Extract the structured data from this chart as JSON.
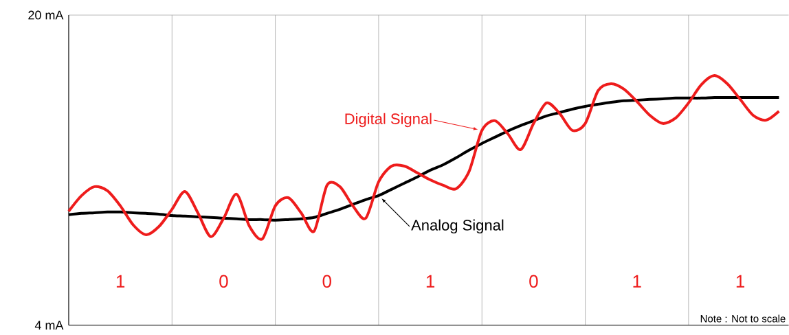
{
  "chart_data": {
    "type": "line",
    "categories": [
      null,
      null,
      null,
      null,
      null,
      null,
      null,
      null,
      null,
      null,
      null,
      null,
      null,
      null,
      null,
      null,
      null,
      null,
      null,
      null,
      null,
      null,
      null,
      null,
      null,
      null,
      null,
      null,
      null,
      null,
      null,
      null,
      null,
      null,
      null,
      null,
      null,
      null,
      null,
      null,
      null,
      null,
      null,
      null,
      null,
      null,
      null,
      null,
      null,
      null,
      null,
      null,
      null,
      null,
      null,
      null
    ],
    "ylim": [
      4,
      20
    ],
    "yticks": [
      {
        "value": 4,
        "label": "4 mA"
      },
      {
        "value": 20,
        "label": "20 mA"
      }
    ],
    "tick_labels": "y",
    "grid": true,
    "marker": "none",
    "line_style": "solid",
    "series": [
      {
        "name": "Analog Signal",
        "color": "#000000",
        "values": [
          9.7,
          9.77,
          9.8,
          9.84,
          9.84,
          9.8,
          9.77,
          9.73,
          9.66,
          9.63,
          9.59,
          9.56,
          9.52,
          9.49,
          9.45,
          9.45,
          9.42,
          9.45,
          9.49,
          9.56,
          9.77,
          9.98,
          10.23,
          10.48,
          10.69,
          11.01,
          11.33,
          11.65,
          12.0,
          12.28,
          12.64,
          13.03,
          13.38,
          13.7,
          14.02,
          14.3,
          14.55,
          14.8,
          14.97,
          15.15,
          15.29,
          15.4,
          15.5,
          15.58,
          15.61,
          15.65,
          15.68,
          15.72,
          15.72,
          15.72,
          15.75,
          15.75,
          15.75,
          15.75,
          15.75,
          15.75
        ]
      },
      {
        "name": "Digital Signal",
        "color": "#ee1c1c",
        "values": [
          9.88,
          10.69,
          11.15,
          10.94,
          10.16,
          9.17,
          8.67,
          9.1,
          9.98,
          10.9,
          9.8,
          8.57,
          9.52,
          10.76,
          9.1,
          8.46,
          10.16,
          10.58,
          9.8,
          8.85,
          11.22,
          11.15,
          10.16,
          9.52,
          11.4,
          12.21,
          12.21,
          11.86,
          11.5,
          11.22,
          11.04,
          11.93,
          14.05,
          14.55,
          13.88,
          13.06,
          14.41,
          15.47,
          14.94,
          14.05,
          14.41,
          16.11,
          16.46,
          16.18,
          15.54,
          14.83,
          14.41,
          14.69,
          15.47,
          16.42,
          16.88,
          16.46,
          15.65,
          14.83,
          14.58,
          15.04
        ]
      }
    ],
    "annotations": [
      "1",
      "0",
      "0",
      "1",
      "0",
      "1",
      "1",
      "Note : Not to scale"
    ]
  }
}
